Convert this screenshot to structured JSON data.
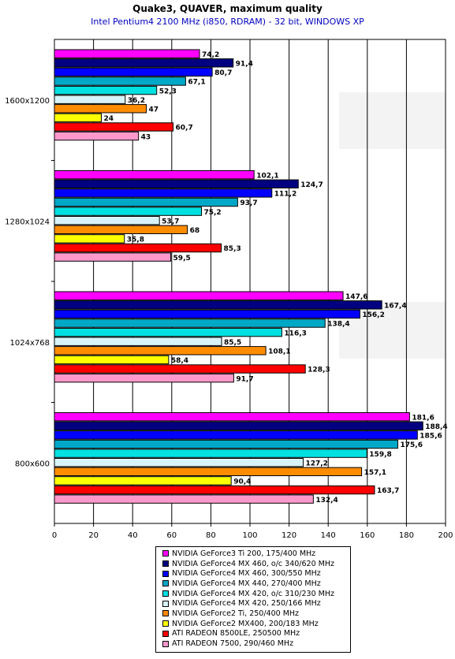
{
  "chart_data": {
    "type": "bar",
    "orientation": "horizontal",
    "title": "Quake3, QUAVER, maximum quality",
    "subtitle": "Intel Pentium4 2100 MHz (i850, RDRAM) - 32 bit, WINDOWS XP",
    "xlabel": "",
    "ylabel": "",
    "xlim": [
      0,
      200
    ],
    "xticks": [
      "0",
      "20",
      "40",
      "60",
      "80",
      "100",
      "120",
      "140",
      "160",
      "180",
      "200"
    ],
    "grid": true,
    "legend_position": "bottom",
    "categories": [
      "1600x1200",
      "1280x1024",
      "1024x768",
      "800x600"
    ],
    "series": [
      {
        "name": "NVIDIA GeForce3 Ti 200, 175/400 MHz",
        "color": "#ff00ff",
        "values": [
          74.2,
          102.1,
          147.6,
          181.6
        ],
        "labels": [
          "74,2",
          "102,1",
          "147,6",
          "181,6"
        ]
      },
      {
        "name": "NVIDIA GeForce4 MX 460, o/c 340/620 MHz",
        "color": "#000080",
        "values": [
          91.4,
          124.7,
          167.4,
          188.4
        ],
        "labels": [
          "91,4",
          "124,7",
          "167,4",
          "188,4"
        ]
      },
      {
        "name": "NVIDIA GeForce4 MX 460, 300/550 MHz",
        "color": "#0000ff",
        "values": [
          80.7,
          111.2,
          156.2,
          185.6
        ],
        "labels": [
          "80,7",
          "111,2",
          "156,2",
          "185,6"
        ]
      },
      {
        "name": "NVIDIA GeForce4 MX 440, 270/400 MHz",
        "color": "#00a8c8",
        "values": [
          67.1,
          93.7,
          138.4,
          175.6
        ],
        "labels": [
          "67,1",
          "93,7",
          "138,4",
          "175,6"
        ]
      },
      {
        "name": "NVIDIA GeForce4 MX 420, o/c 310/230 MHz",
        "color": "#00e0e0",
        "values": [
          52.3,
          75.2,
          116.3,
          159.8
        ],
        "labels": [
          "52,3",
          "75,2",
          "116,3",
          "159,8"
        ]
      },
      {
        "name": "NVIDIA GeForce4 MX 420, 250/166 MHz",
        "color": "#d8f4f8",
        "values": [
          36.2,
          53.7,
          85.5,
          127.2
        ],
        "labels": [
          "36,2",
          "53,7",
          "85,5",
          "127,2"
        ]
      },
      {
        "name": "NVIDIA GeForce2 Ti, 250/400 MHz",
        "color": "#ff8c00",
        "values": [
          47,
          68,
          108.1,
          157.1
        ],
        "labels": [
          "47",
          "68",
          "108,1",
          "157,1"
        ]
      },
      {
        "name": "NVIDIA GeForce2 MX400, 200/183 MHz",
        "color": "#ffff00",
        "values": [
          24,
          35.8,
          58.4,
          90.4
        ],
        "labels": [
          "24",
          "35,8",
          "58,4",
          "90,4"
        ]
      },
      {
        "name": "ATI RADEON 8500LE, 250500 MHz",
        "color": "#ff0000",
        "values": [
          60.7,
          85.3,
          128.3,
          163.7
        ],
        "labels": [
          "60,7",
          "85,3",
          "128,3",
          "163,7"
        ]
      },
      {
        "name": "ATI RADEON 7500, 290/460 MHz",
        "color": "#ff99cc",
        "values": [
          43,
          59.5,
          91.7,
          132.4
        ],
        "labels": [
          "43",
          "59,5",
          "91,7",
          "132,4"
        ]
      }
    ]
  }
}
